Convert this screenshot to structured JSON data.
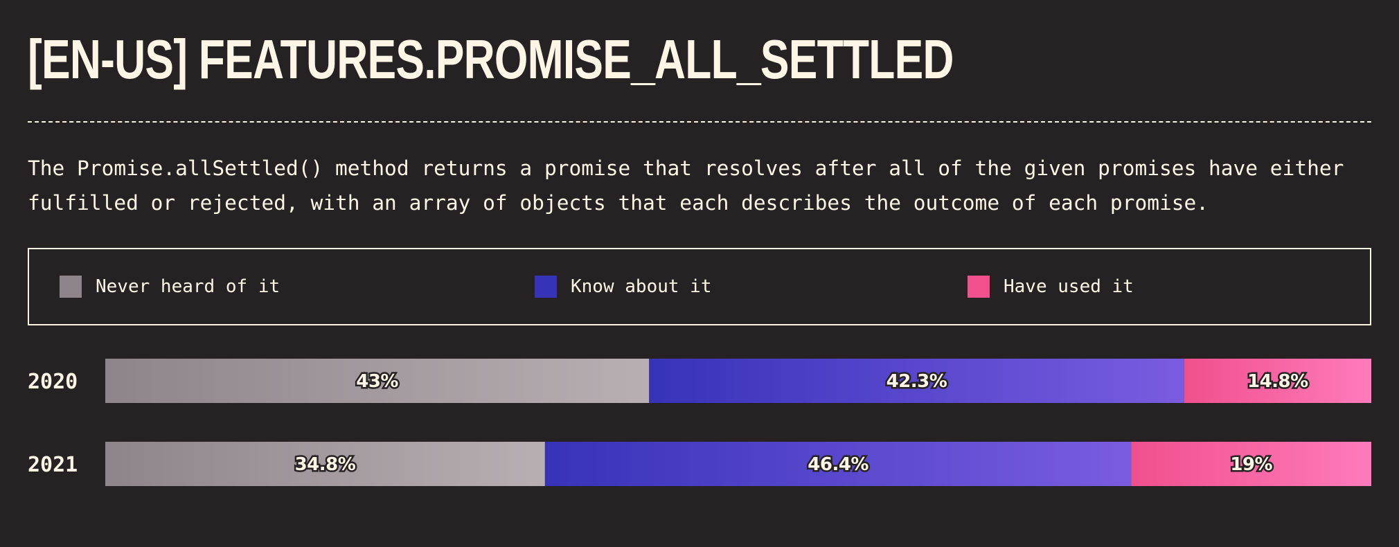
{
  "header": {
    "title": "[EN-US] FEATURES.PROMISE_ALL_SETTLED",
    "description": "The Promise.allSettled() method returns a promise that resolves after all of the given promises have either fulfilled or rejected, with an array of objects that each describes the outcome of each promise."
  },
  "colors": {
    "background": "#262224",
    "text": "#fdf6e7",
    "never_heard": [
      "#8d8589",
      "#b7afb2"
    ],
    "know_about": [
      "#3733b9",
      "#7a5ce0"
    ],
    "have_used": [
      "#f0508c",
      "#ff7bbb"
    ]
  },
  "chart_data": {
    "type": "bar",
    "orientation": "horizontal",
    "stacked": true,
    "normalized": true,
    "title": "[EN-US] FEATURES.PROMISE_ALL_SETTLED",
    "categories": [
      "2020",
      "2021"
    ],
    "series": [
      {
        "name": "Never heard of it",
        "values": [
          43,
          34.8
        ],
        "labels": [
          "43%",
          "34.8%"
        ]
      },
      {
        "name": "Know about it",
        "values": [
          42.3,
          46.4
        ],
        "labels": [
          "42.3%",
          "46.4%"
        ]
      },
      {
        "name": "Have used it",
        "values": [
          14.8,
          19
        ],
        "labels": [
          "14.8%",
          "19%"
        ]
      }
    ],
    "xlim": [
      0,
      100
    ],
    "grid": false,
    "legend": "top"
  }
}
